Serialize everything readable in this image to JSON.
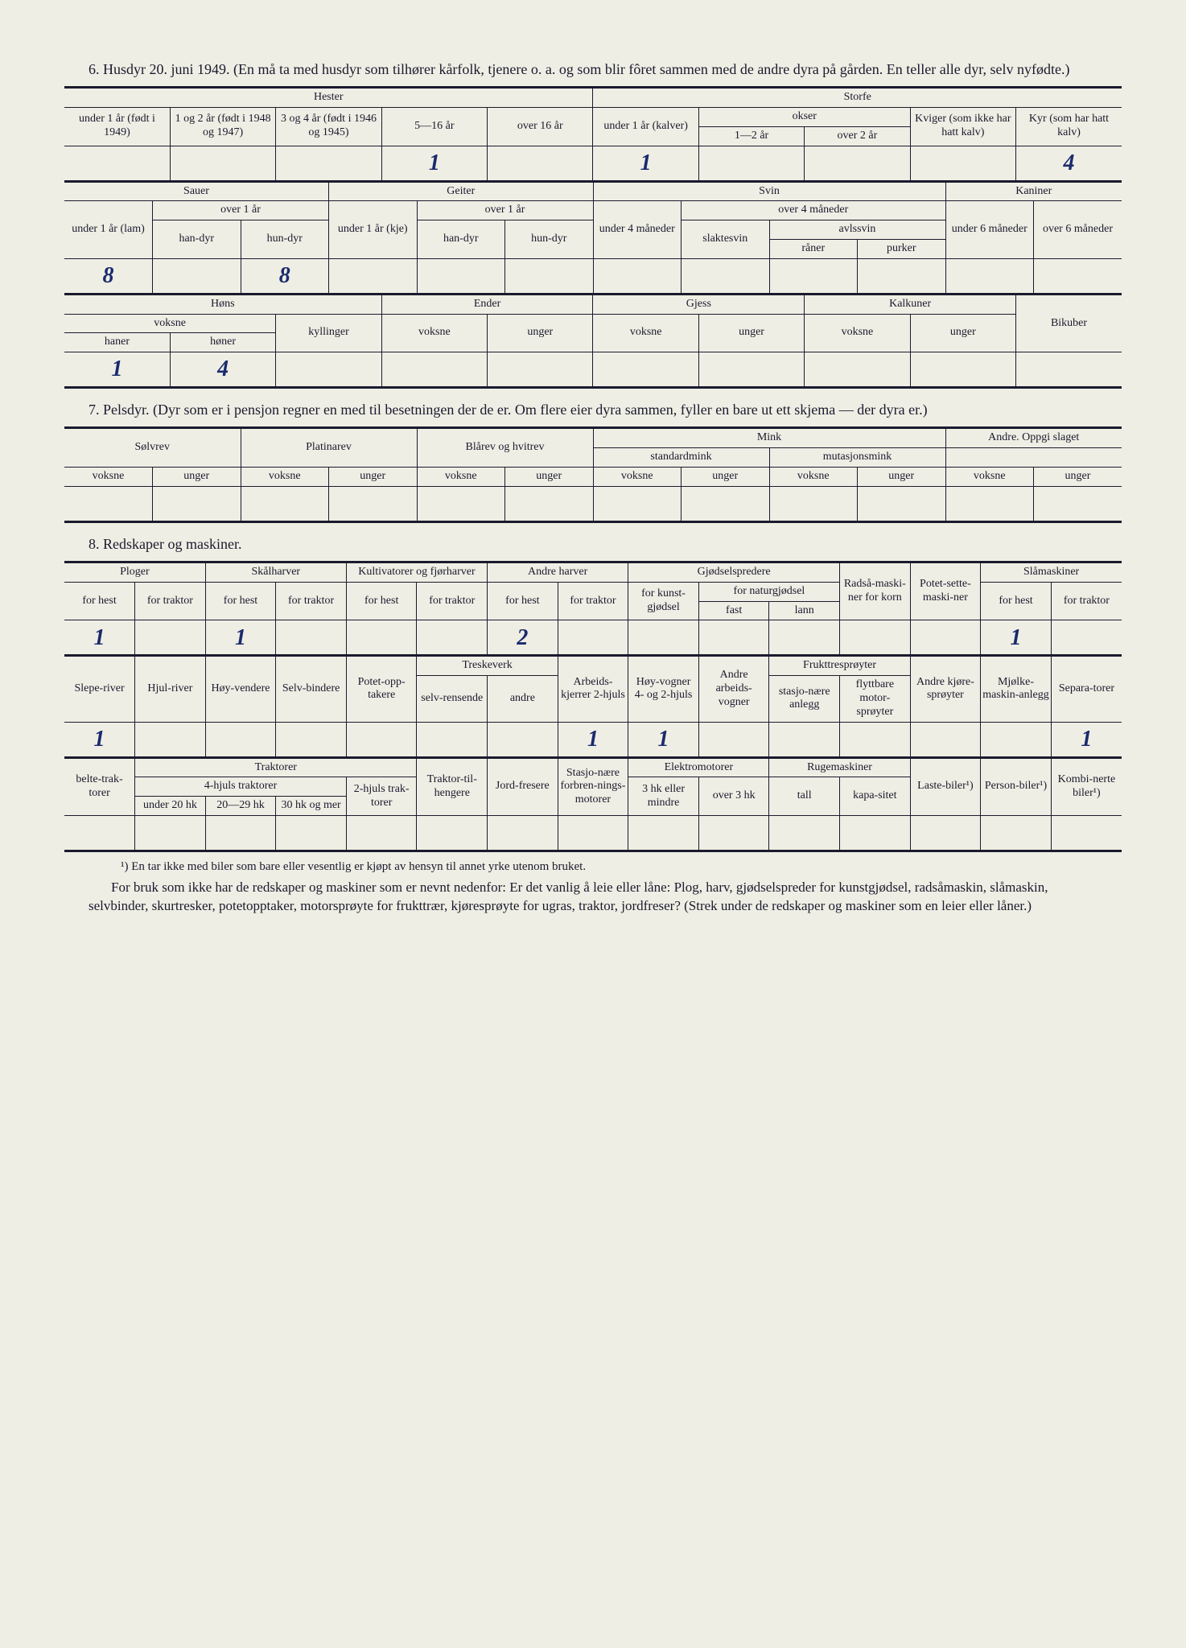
{
  "section6": {
    "title": "6. Husdyr 20. juni 1949.  (En må ta med husdyr som tilhører kårfolk, tjenere o. a. og som blir fôret sammen med de andre dyra på gården.   En teller alle dyr, selv nyfødte.)",
    "hester_label": "Hester",
    "storfe_label": "Storfe",
    "h1": "under 1 år (født i 1949)",
    "h2": "1 og 2 år (født i 1948 og 1947)",
    "h3": "3 og 4 år (født i 1946 og 1945)",
    "h4": "5—16 år",
    "h5": "over 16 år",
    "s1": "under 1 år (kalver)",
    "okser": "okser",
    "s2a": "1—2 år",
    "s2b": "over 2 år",
    "s3": "Kviger (som ikke har hatt kalv)",
    "s4": "Kyr (som har hatt kalv)",
    "v_h4": "1",
    "v_s1": "1",
    "v_s4": "4",
    "sauer": "Sauer",
    "geiter": "Geiter",
    "svin": "Svin",
    "kaniner": "Kaniner",
    "u1lam": "under 1 år (lam)",
    "o1": "over 1 år",
    "han": "han-dyr",
    "hun": "hun-dyr",
    "u1kje": "under 1 år (kje)",
    "u4m": "under 4 måneder",
    "o4m": "over 4 måneder",
    "slakte": "slaktesvin",
    "avls": "avlssvin",
    "raner": "råner",
    "purker": "purker",
    "u6m": "under 6 måneder",
    "o6m": "over 6 måneder",
    "v_lam": "8",
    "v_hun": "8",
    "hons": "Høns",
    "ender": "Ender",
    "gjess": "Gjess",
    "kalkuner": "Kalkuner",
    "bikuber": "Bikuber",
    "voksne": "voksne",
    "unger": "unger",
    "kyllinger": "kyllinger",
    "haner": "haner",
    "honer": "høner",
    "v_haner": "1",
    "v_honer": "4"
  },
  "section7": {
    "title": "7. Pelsdyr.  (Dyr som er i pensjon regner en med til besetningen der de er.   Om flere eier dyra sammen, fyller en bare ut ett skjema — der dyra er.)",
    "solvrev": "Sølvrev",
    "platinarev": "Platinarev",
    "blarev": "Blårev og hvitrev",
    "mink": "Mink",
    "stdmink": "standardmink",
    "mutmink": "mutasjonsmink",
    "andre": "Andre.  Oppgi slaget",
    "voksne": "voksne",
    "unger": "unger"
  },
  "section8": {
    "title": "8. Redskaper og maskiner.",
    "ploger": "Ploger",
    "skalharver": "Skålharver",
    "kultiv": "Kultivatorer og fjørharver",
    "andreharver": "Andre harver",
    "gjodsel": "Gjødselspredere",
    "radsak": "Radså-maski-ner for korn",
    "potet": "Potet-sette-maski-ner",
    "slamask": "Slåmaskiner",
    "forhest": "for hest",
    "fortraktor": "for traktor",
    "forkunst": "for kunst-gjødsel",
    "fornatur": "for naturgjødsel",
    "fast": "fast",
    "lann": "lann",
    "v_plog_h": "1",
    "v_skal_h": "1",
    "v_andre_h": "2",
    "v_sla_h": "1",
    "sleperiver": "Slepe-river",
    "hjulriver": "Hjul-river",
    "hoyvend": "Høy-vendere",
    "selvbind": "Selv-bindere",
    "potetopp": "Potet-opp-takere",
    "treske": "Treskeverk",
    "selvrens": "selv-rensende",
    "andre": "andre",
    "arbeid": "Arbeids-kjerrer 2-hjuls",
    "hoyvogn": "Høy-vogner 4- og 2-hjuls",
    "andrevogn": "Andre arbeids-vogner",
    "frukt": "Frukttresprøyter",
    "stasjo": "stasjo-nære anlegg",
    "flytt": "flyttbare motor-sprøyter",
    "andrekj": "Andre kjøre-sprøyter",
    "mjolke": "Mjølke-maskin-anlegg",
    "separa": "Separa-torer",
    "v_slepe": "1",
    "v_arbeid": "1",
    "v_hoyv": "1",
    "v_separa": "1",
    "belte": "belte-trak-torer",
    "traktorer": "Traktorer",
    "fhjul": "4-hjuls traktorer",
    "u20": "under 20 hk",
    "hk2029": "20—29 hk",
    "hk30": "30 hk og mer",
    "tohjul": "2-hjuls trak-torer",
    "tilhenger": "Traktor-til-hengere",
    "jordfres": "Jord-fresere",
    "stasjforbr": "Stasjo-nære forbren-nings-motorer",
    "elektro": "Elektromotorer",
    "hk3": "3 hk eller mindre",
    "o3hk": "over 3 hk",
    "ruge": "Rugemaskiner",
    "tall": "tall",
    "kapa": "kapa-sitet",
    "laste": "Laste-biler¹)",
    "person": "Person-biler¹)",
    "kombi": "Kombi-nerte biler¹)"
  },
  "footnote": "¹) En tar ikke med biler som bare eller vesentlig er kjøpt av hensyn til annet yrke utenom bruket.",
  "para": "For bruk som ikke har de redskaper og maskiner som er nevnt nedenfor:  Er det vanlig å leie eller låne:  Plog, harv, gjødselspreder for kunstgjødsel, radsåmaskin, slåmaskin, selvbinder, skurtresker, potetopptaker, motorsprøyte for frukttrær, kjøresprøyte for ugras, traktor, jordfreser? (Strek under de redskaper og maskiner som en leier eller låner.)"
}
